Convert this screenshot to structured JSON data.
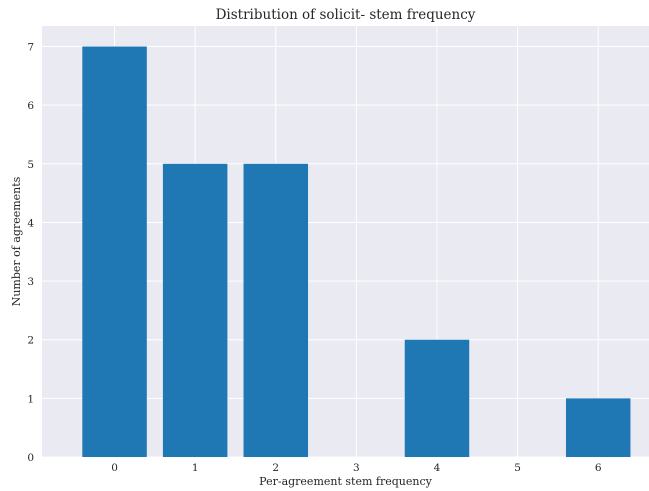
{
  "chart_data": {
    "type": "bar",
    "title": "Distribution of solicit- stem frequency",
    "xlabel": "Per-agreement stem frequency",
    "ylabel": "Number of agreements",
    "categories": [
      "0",
      "1",
      "2",
      "3",
      "4",
      "5",
      "6"
    ],
    "values": [
      7,
      5,
      5,
      0,
      2,
      0,
      1
    ],
    "ylim": [
      0,
      7.35
    ],
    "yticks": [
      "0",
      "1",
      "2",
      "3",
      "4",
      "5",
      "6",
      "7"
    ],
    "grid": true,
    "bar_color": "#1f77b4",
    "plot_background": "#eaeaf2",
    "grid_color": "#ffffff"
  }
}
